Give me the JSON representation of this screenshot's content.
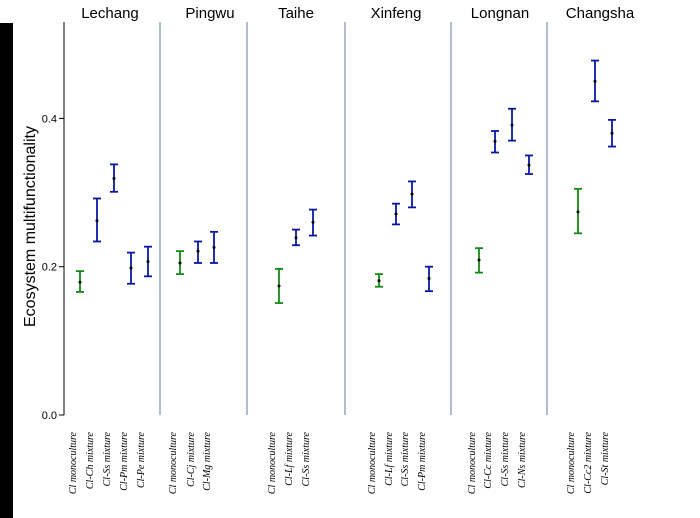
{
  "chart_data": {
    "type": "errorbar",
    "ylabel": "Ecosystem multifunctionality",
    "ylim": [
      0,
      0.53
    ],
    "yticks": [
      {
        "value": 0.0,
        "label": "0.0"
      },
      {
        "value": 0.2,
        "label": "0.2"
      },
      {
        "value": 0.4,
        "label": "0.4"
      }
    ],
    "colors": {
      "monoculture": "#138a13",
      "mixture": "#0a18a0",
      "divider": "#7c8fb5",
      "axis": "#000000"
    },
    "groups": [
      {
        "site": "Lechang",
        "points": [
          {
            "label": "Cl monoculture",
            "kind": "monoculture",
            "mean": 0.179,
            "low": 0.166,
            "high": 0.194
          },
          {
            "label": "Cl-Ch mixture",
            "kind": "mixture",
            "mean": 0.262,
            "low": 0.234,
            "high": 0.292
          },
          {
            "label": "Cl-Ss mixture",
            "kind": "mixture",
            "mean": 0.319,
            "low": 0.301,
            "high": 0.338
          },
          {
            "label": "Cl-Pm mixture",
            "kind": "mixture",
            "mean": 0.198,
            "low": 0.177,
            "high": 0.219
          },
          {
            "label": "Cl-Pe mixture",
            "kind": "mixture",
            "mean": 0.207,
            "low": 0.187,
            "high": 0.227
          }
        ]
      },
      {
        "site": "Pingwu",
        "points": [
          {
            "label": "Cl monoculture",
            "kind": "monoculture",
            "mean": 0.205,
            "low": 0.19,
            "high": 0.221
          },
          {
            "label": "Cl-Cj mixture",
            "kind": "mixture",
            "mean": 0.221,
            "low": 0.205,
            "high": 0.234
          },
          {
            "label": "Cl-Mg mixture",
            "kind": "mixture",
            "mean": 0.226,
            "low": 0.205,
            "high": 0.247
          }
        ]
      },
      {
        "site": "Taihe",
        "points": [
          {
            "label": "Cl monoculture",
            "kind": "monoculture",
            "mean": 0.174,
            "low": 0.151,
            "high": 0.197
          },
          {
            "label": "Cl-Lf mixture",
            "kind": "mixture",
            "mean": 0.239,
            "low": 0.229,
            "high": 0.25
          },
          {
            "label": "Cl-Ss mixture",
            "kind": "mixture",
            "mean": 0.26,
            "low": 0.242,
            "high": 0.277
          }
        ]
      },
      {
        "site": "Xinfeng",
        "points": [
          {
            "label": "Cl monoculture",
            "kind": "monoculture",
            "mean": 0.181,
            "low": 0.173,
            "high": 0.19
          },
          {
            "label": "Cl-Lf mixture",
            "kind": "mixture",
            "mean": 0.271,
            "low": 0.257,
            "high": 0.285
          },
          {
            "label": "Cl-Ss mixture",
            "kind": "mixture",
            "mean": 0.298,
            "low": 0.28,
            "high": 0.315
          },
          {
            "label": "Cl-Pm mixture",
            "kind": "mixture",
            "mean": 0.184,
            "low": 0.167,
            "high": 0.2
          }
        ]
      },
      {
        "site": "Longnan",
        "points": [
          {
            "label": "Cl  monoculture",
            "kind": "monoculture",
            "mean": 0.209,
            "low": 0.192,
            "high": 0.225
          },
          {
            "label": "Cl-Cc mixture",
            "kind": "mixture",
            "mean": 0.369,
            "low": 0.354,
            "high": 0.383
          },
          {
            "label": "Cl-Ss mixture",
            "kind": "mixture",
            "mean": 0.391,
            "low": 0.37,
            "high": 0.413
          },
          {
            "label": "Cl-Ns mixture",
            "kind": "mixture",
            "mean": 0.337,
            "low": 0.325,
            "high": 0.35
          }
        ]
      },
      {
        "site": "Changsha",
        "points": [
          {
            "label": "Cl monoculture",
            "kind": "monoculture",
            "mean": 0.274,
            "low": 0.245,
            "high": 0.305
          },
          {
            "label": "Cl-Cc2 mixture",
            "kind": "mixture",
            "mean": 0.45,
            "low": 0.423,
            "high": 0.478
          },
          {
            "label": "Cl-St mixture",
            "kind": "mixture",
            "mean": 0.38,
            "low": 0.362,
            "high": 0.398
          }
        ]
      }
    ]
  }
}
